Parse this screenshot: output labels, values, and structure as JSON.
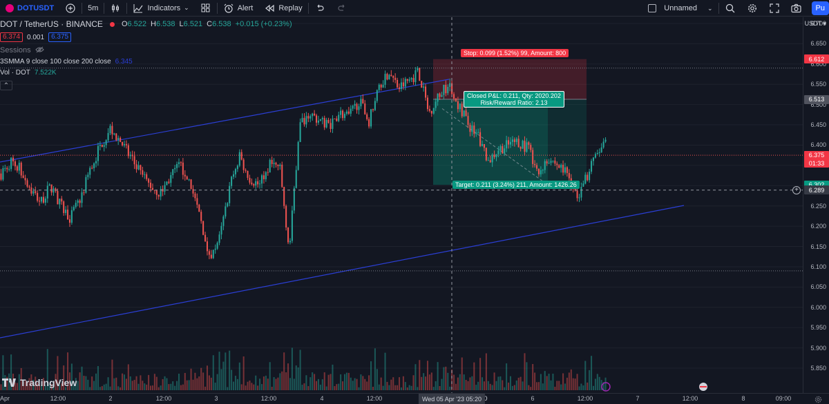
{
  "toolbar": {
    "symbol": "DOTUSDT",
    "interval": "5m",
    "indicators_label": "Indicators",
    "alert_label": "Alert",
    "replay_label": "Replay",
    "layout_name": "Unnamed",
    "publish_label": "Pu"
  },
  "legend": {
    "title": "DOT / TetherUS · BINANCE",
    "o_key": "O",
    "o_val": "6.522",
    "h_key": "H",
    "h_val": "6.538",
    "l_key": "L",
    "l_val": "6.521",
    "c_key": "C",
    "c_val": "6.538",
    "change": "+0.015 (+0.23%)",
    "sell_price": "6.374",
    "spread": "0.001",
    "buy_price": "6.375",
    "sessions_label": "Sessions",
    "sma_label": "3SMMA 9 close 100 close 200 close",
    "sma_value": "6.345",
    "vol_label": "Vol · DOT",
    "vol_value": "7.522K"
  },
  "position": {
    "stop_label": "Stop: 0.099 (1.52%) 99, Amount: 800",
    "info_line1": "Closed P&L: 0.211, Qty: 2020.202",
    "info_line2": "Risk/Reward Ratio: 2.13",
    "target_label": "Target: 0.211 (3.24%) 211, Amount: 1426.26"
  },
  "price_axis": {
    "currency": "USDT",
    "ticks": [
      "6.700",
      "6.650",
      "6.600",
      "6.550",
      "6.500",
      "6.450",
      "6.400",
      "6.350",
      "6.300",
      "6.250",
      "6.200",
      "6.150",
      "6.100",
      "6.050",
      "6.000",
      "5.950",
      "5.900",
      "5.850"
    ],
    "stop_price": "6.612",
    "entry_price": "6.513",
    "current_price": "6.375",
    "countdown": "01:33",
    "target_price": "6.302",
    "crosshair_price": "6.289"
  },
  "time_axis": {
    "ticks": [
      "Apr",
      "12:00",
      "2",
      "12:00",
      "3",
      "12:00",
      "4",
      "12:00",
      "12:00",
      "6",
      "12:00",
      "7",
      "12:00",
      "8",
      "09:00"
    ],
    "cursor_label": "Wed 05 Apr '23   05:20",
    "partial_tick": "0"
  },
  "branding": {
    "logo_text": "TradingView"
  },
  "colors": {
    "background": "#131722",
    "up": "#26a69a",
    "down": "#ef5350",
    "channel": "#2b3fd6",
    "stop_zone": "#f23645",
    "target_zone": "#089981",
    "accent": "#2962ff"
  },
  "chart_data": {
    "type": "candlestick",
    "symbol": "DOT / TetherUS",
    "exchange": "BINANCE",
    "interval": "5m",
    "ylim": [
      5.85,
      6.7
    ],
    "path_close": [
      6.33,
      6.36,
      6.34,
      6.29,
      6.26,
      6.3,
      6.25,
      6.22,
      6.27,
      6.34,
      6.4,
      6.44,
      6.41,
      6.37,
      6.33,
      6.3,
      6.28,
      6.32,
      6.35,
      6.31,
      6.22,
      6.13,
      6.17,
      6.3,
      6.37,
      6.32,
      6.3,
      6.35,
      6.35,
      6.14,
      6.45,
      6.48,
      6.46,
      6.45,
      6.48,
      6.47,
      6.51,
      6.46,
      6.55,
      6.58,
      6.54,
      6.56,
      6.58,
      6.48,
      6.52,
      6.55,
      6.5,
      6.45,
      6.42,
      6.36,
      6.39,
      6.4,
      6.41,
      6.39,
      6.33,
      6.37,
      6.35,
      6.33,
      6.27,
      6.33,
      6.38,
      6.41
    ],
    "entry": 6.513,
    "stop": 6.612,
    "target": 6.302,
    "last_price": 6.375
  }
}
